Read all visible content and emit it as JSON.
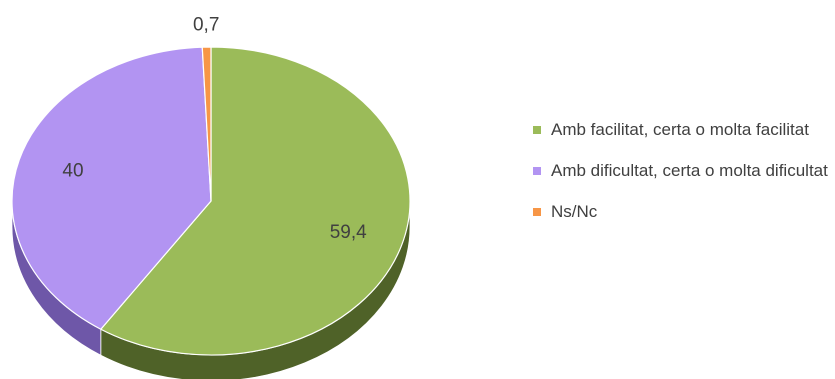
{
  "chart_data": {
    "type": "pie",
    "title": "",
    "three_d": true,
    "legend_position": "right",
    "slices": [
      {
        "label": "Amb facilitat, certa o molta facilitat",
        "value": 59.4,
        "value_label": "59,4",
        "color": "#9BBB59",
        "side_color": "#4F6228"
      },
      {
        "label": "Amb dificultat, certa o molta dificultat",
        "value": 40,
        "value_label": "40",
        "color": "#B294F2",
        "side_color": "#6E57A8"
      },
      {
        "label": "Ns/Nc",
        "value": 0.7,
        "value_label": "0,7",
        "color": "#F79646",
        "side_color": "#B65708"
      }
    ]
  }
}
